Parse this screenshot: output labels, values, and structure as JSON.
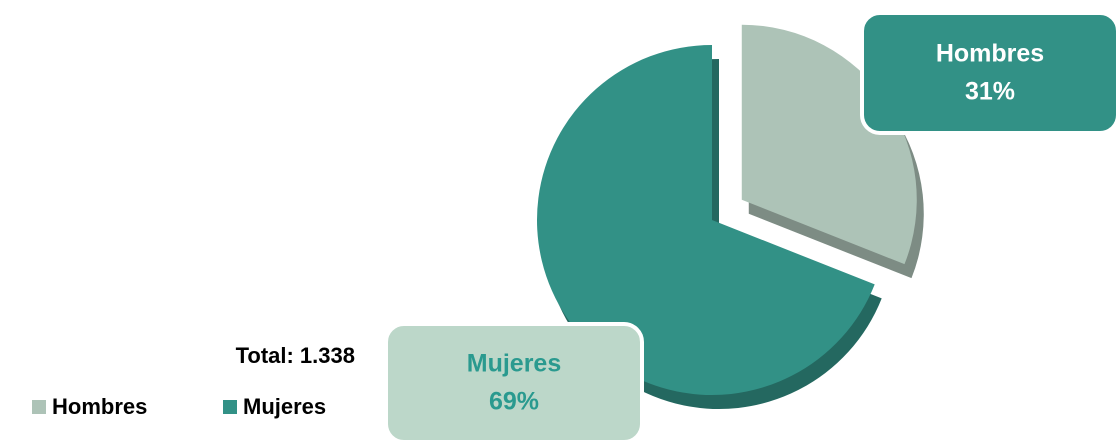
{
  "chart_data": {
    "type": "pie",
    "categories": [
      "Hombres",
      "Mujeres"
    ],
    "values": [
      31,
      69
    ],
    "value_labels": [
      "31%",
      "69%"
    ],
    "colors": [
      "#adc3b7",
      "#329186"
    ],
    "annotation": "Total: 1.338",
    "legend": "bottom-left"
  }
}
